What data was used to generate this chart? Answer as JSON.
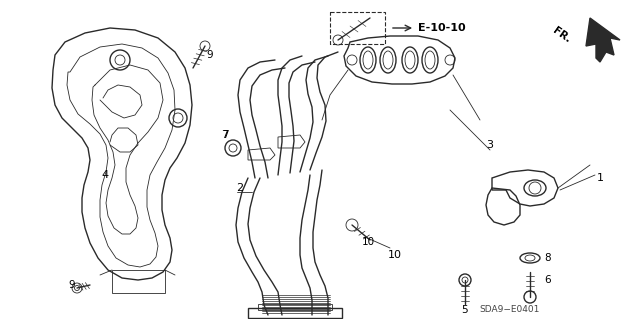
{
  "bg_color": "#ffffff",
  "line_color": "#2a2a2a",
  "label_color": "#000000",
  "ref_label": "E-10-10",
  "diagram_code": "SDA9−E0401",
  "fr_label": "FR.",
  "figsize": [
    6.4,
    3.19
  ],
  "dpi": 100
}
